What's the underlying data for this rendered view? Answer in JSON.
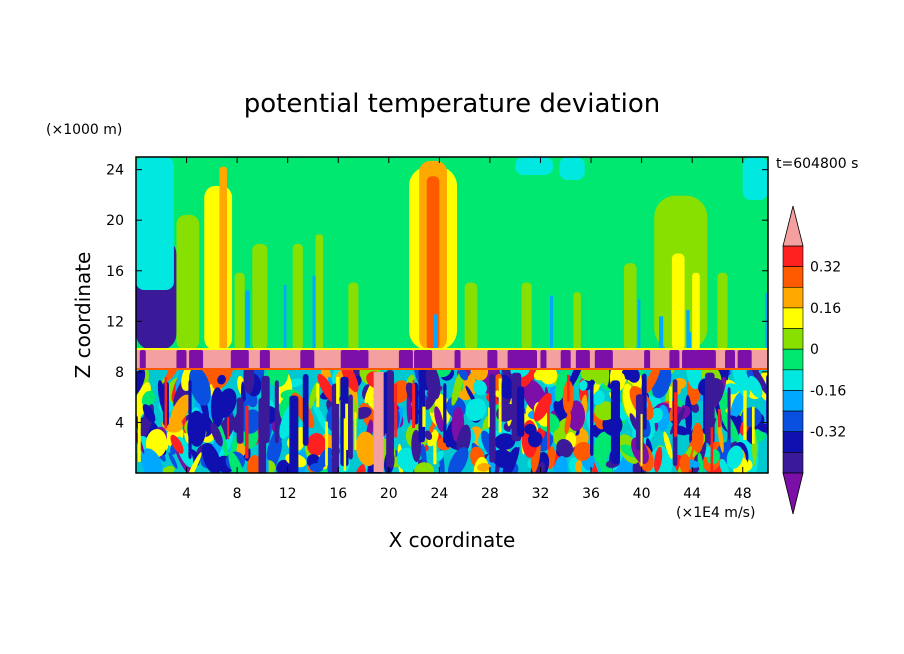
{
  "chart_data": {
    "type": "heatmap",
    "title": "potential temperature deviation",
    "xlabel": "X coordinate",
    "ylabel": "Z coordinate",
    "x_unit": "(×1E4 m/s)",
    "y_unit": "(×1000 m)",
    "time_label": "t=604800 s",
    "xlim": [
      0,
      50
    ],
    "ylim": [
      0,
      25
    ],
    "x_ticks": [
      4,
      8,
      12,
      16,
      20,
      24,
      28,
      32,
      36,
      40,
      44,
      48
    ],
    "y_ticks": [
      4,
      8,
      12,
      16,
      20,
      24
    ],
    "colorbar": {
      "levels": [
        -0.48,
        -0.4,
        -0.32,
        -0.24,
        -0.16,
        -0.08,
        0,
        0.08,
        0.16,
        0.24,
        0.32,
        0.4
      ],
      "colors": [
        "#7b0fa8",
        "#3b1a9a",
        "#1010b0",
        "#0a50e0",
        "#00a8ff",
        "#00e8e0",
        "#00e870",
        "#88e000",
        "#ffff00",
        "#ffa800",
        "#ff5a00",
        "#ff2020",
        "#f5a0a0"
      ],
      "tick_labels": [
        "0.32",
        "0.16",
        "0",
        "-0.16",
        "-0.32"
      ],
      "tick_values": [
        0.32,
        0.16,
        0,
        -0.16,
        -0.32
      ],
      "extend": "both"
    },
    "fields": {
      "upper_layer": {
        "z_range": [
          9.8,
          25
        ],
        "dominant": "0 to 0.08",
        "warm_columns_x": [
          7,
          23.5
        ],
        "cool_edge_x": [
          0,
          3
        ]
      },
      "inversion_band": {
        "z_range": [
          8.2,
          9.7
        ],
        "value": "above 0.4"
      },
      "lower_layer": {
        "z_range": [
          0,
          8.2
        ],
        "description": "turbulent mixed values from -0.48 to 0.4"
      }
    }
  }
}
